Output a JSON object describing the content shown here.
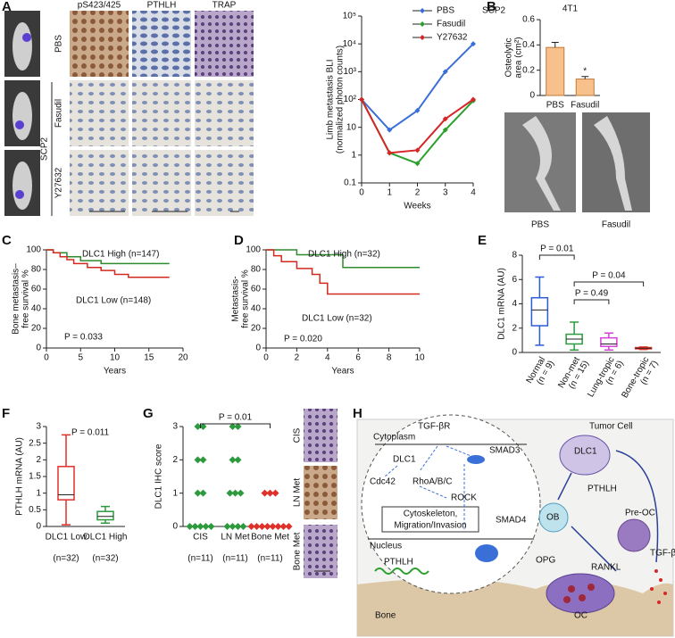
{
  "figure": {
    "panel_labels": [
      "A",
      "B",
      "C",
      "D",
      "E",
      "F",
      "G",
      "H"
    ]
  },
  "panel_a_images": {
    "columns": [
      "pS423/425",
      "PTHLH",
      "TRAP"
    ],
    "rows": [
      "PBS",
      "Fasudil",
      "Y27632"
    ],
    "group": "SCP2"
  },
  "panel_b_images": {
    "labels": [
      "PBS",
      "Fasudil"
    ]
  },
  "panel_g_images": {
    "labels": [
      "CIS",
      "LN Met",
      "Bone Met"
    ]
  },
  "panel_h": {
    "receptor": "TGF-βR",
    "cytoplasm": "Cytoplasm",
    "smad3": "SMAD3",
    "dlc1_inner": "DLC1",
    "cdc42": "Cdc42",
    "rho": "RhoA/B/C",
    "rock": "ROCK",
    "cytoskeleton": [
      "Cytoskeleton,",
      "Migration/Invasion"
    ],
    "smad4": "SMAD4",
    "nucleus": "Nucleus",
    "pthlh_inner": "PTHLH",
    "tumor_cell": "Tumor Cell",
    "dlc1_outer": "DLC1",
    "pthlh_outer": "PTHLH",
    "ob": "OB",
    "pre_oc": "Pre-OC",
    "opg": "OPG",
    "rankl": "RANKL",
    "tgfb": "TGF-β",
    "oc": "OC",
    "bone": "Bone"
  },
  "chart_data": [
    {
      "type": "line",
      "title": "SCP2",
      "ylabel": [
        "Limb metastasis BLI",
        "(normalized photon counts)"
      ],
      "xlabel": "Weeks",
      "x": [
        0,
        1,
        2,
        3,
        4
      ],
      "xlim": [
        0,
        4
      ],
      "xticks": [
        0,
        1,
        2,
        3,
        4
      ],
      "ylog": true,
      "ylim": [
        0.1,
        100000
      ],
      "yticks": [
        0.1,
        1,
        10,
        {
          "value": 100,
          "label": "10²"
        },
        {
          "value": 1000,
          "label": "10³"
        },
        {
          "value": 10000,
          "label": "10⁴"
        },
        {
          "value": 100000,
          "label": "10⁵"
        }
      ],
      "legend": "upper right",
      "series": [
        {
          "name": "PBS",
          "color": "#3a6fd8",
          "values": [
            100,
            8,
            40,
            1000,
            10000
          ]
        },
        {
          "name": "Fasudil",
          "color": "#2ca02c",
          "values": [
            100,
            1.2,
            0.5,
            8,
            90
          ]
        },
        {
          "name": "Y27632",
          "color": "#d62728",
          "values": [
            100,
            1.2,
            1.5,
            20,
            100
          ]
        }
      ]
    },
    {
      "type": "bar",
      "title": "4T1",
      "ylabel": [
        "Osteolytic",
        "area (cm²)"
      ],
      "categories": [
        "PBS",
        "Fasudil"
      ],
      "values": [
        0.38,
        0.13
      ],
      "errors": [
        0.04,
        0.02
      ],
      "color": "#f8c08a",
      "ylim": [
        0,
        0.6
      ],
      "yticks": [
        0,
        0.2,
        0.4,
        0.6
      ],
      "annotation": "*"
    },
    {
      "type": "survival",
      "ylabel": [
        "Bone metastasis–",
        "free survival %"
      ],
      "xlabel": "Years",
      "xlim": [
        0,
        20
      ],
      "xticks": [
        0,
        5,
        10,
        15,
        20
      ],
      "ylim": [
        0,
        100
      ],
      "yticks": [
        0,
        20,
        40,
        60,
        80,
        100
      ],
      "annotation": "P = 0.033",
      "series": [
        {
          "name": "DLC1 High (n=147)",
          "color": "#2e8b2e",
          "x": [
            0,
            1,
            1,
            3,
            3,
            5,
            5,
            8,
            8,
            18
          ],
          "values": [
            100,
            100,
            97,
            97,
            93,
            93,
            89,
            89,
            86,
            86
          ]
        },
        {
          "name": "DLC1 Low (n=148)",
          "color": "#d22a1e",
          "x": [
            0,
            1,
            1,
            2,
            2,
            3,
            3,
            4,
            4,
            6,
            6,
            8,
            8,
            10,
            10,
            12,
            12,
            18
          ],
          "values": [
            100,
            100,
            97,
            97,
            93,
            93,
            90,
            90,
            86,
            86,
            82,
            82,
            79,
            79,
            75,
            75,
            72,
            72
          ]
        }
      ]
    },
    {
      "type": "survival",
      "ylabel": [
        "Metastasis-",
        "free survival %"
      ],
      "xlabel": "Years",
      "xlim": [
        0,
        10
      ],
      "xticks": [
        0,
        2,
        4,
        6,
        8,
        10
      ],
      "ylim": [
        0,
        100
      ],
      "yticks": [
        0,
        20,
        40,
        60,
        80,
        100
      ],
      "annotation": "P = 0.020",
      "series": [
        {
          "name": "DLC1 High (n=32)",
          "color": "#2e8b2e",
          "x": [
            0,
            2,
            2,
            5,
            5,
            10
          ],
          "values": [
            100,
            100,
            95,
            95,
            82,
            82
          ]
        },
        {
          "name": "DLC1 Low (n=32)",
          "color": "#d22a1e",
          "x": [
            0,
            0.5,
            0.5,
            1,
            1,
            2,
            2,
            3,
            3,
            3.5,
            3.5,
            4,
            4,
            10
          ],
          "values": [
            100,
            100,
            94,
            94,
            88,
            88,
            81,
            81,
            75,
            75,
            66,
            66,
            55,
            55
          ]
        }
      ]
    },
    {
      "type": "box",
      "ylabel": [
        "DLC1 mRNA (AU)"
      ],
      "categories": [
        "Normal",
        "Non-met",
        "Lung-tropic",
        "Bone-tropic"
      ],
      "category_notes": [
        "(n = 9)",
        "(n = 15)",
        "(n = 6)",
        "(n = 7)"
      ],
      "ylim": [
        0,
        8
      ],
      "yticks": [
        0,
        2,
        4,
        6,
        8
      ],
      "annotations": [
        "P = 0.01",
        "P = 0.49",
        "P = 0.04"
      ],
      "boxes": [
        {
          "color": "#2b5bd7",
          "min": 0.6,
          "q1": 2.2,
          "median": 3.5,
          "q3": 4.5,
          "max": 6.2
        },
        {
          "color": "#2e9a3e",
          "min": 0.2,
          "q1": 0.7,
          "median": 1.1,
          "q3": 1.5,
          "max": 2.5
        },
        {
          "color": "#d63fd6",
          "min": 0.2,
          "q1": 0.5,
          "median": 0.7,
          "q3": 1.2,
          "max": 1.6
        },
        {
          "color": "#e0302a",
          "min": 0.25,
          "q1": 0.3,
          "median": 0.35,
          "q3": 0.4,
          "max": 0.45
        }
      ]
    },
    {
      "type": "box",
      "ylabel": [
        "PTHLH mRNA (AU)"
      ],
      "categories": [
        "DLC1 Low",
        "DLC1 High"
      ],
      "category_notes": [
        "(n=32)",
        "(n=32)"
      ],
      "ylim": [
        0,
        3
      ],
      "yticks": [
        0,
        0.5,
        1,
        1.5,
        2,
        2.5,
        3
      ],
      "annotations": [
        "P = 0.011"
      ],
      "boxes": [
        {
          "color": "#e0302a",
          "min": 0.05,
          "q1": 0.8,
          "median": 0.95,
          "q3": 1.8,
          "max": 2.75
        },
        {
          "color": "#2e9a3e",
          "min": 0.1,
          "q1": 0.2,
          "median": 0.3,
          "q3": 0.45,
          "max": 0.6
        }
      ]
    },
    {
      "type": "dot",
      "ylabel": [
        "DLC1 IHC score"
      ],
      "categories": [
        "CIS",
        "LN Met",
        "Bone Met"
      ],
      "category_notes": [
        "(n=11)",
        "(n=11)",
        "(n=11)"
      ],
      "ylim": [
        0,
        3
      ],
      "yticks": [
        0,
        1,
        2,
        3
      ],
      "annotations": [
        "P = 0.01"
      ],
      "colors": [
        "#2e9a3e",
        "#2e9a3e",
        "#e0302a"
      ],
      "values": [
        [
          3,
          3,
          2,
          2,
          1,
          1,
          0,
          0,
          0,
          0,
          0
        ],
        [
          3,
          3,
          2,
          2,
          1,
          1,
          1,
          0,
          0,
          0,
          0
        ],
        [
          1,
          1,
          1,
          0,
          0,
          0,
          0,
          0,
          0,
          0,
          0
        ]
      ]
    }
  ]
}
